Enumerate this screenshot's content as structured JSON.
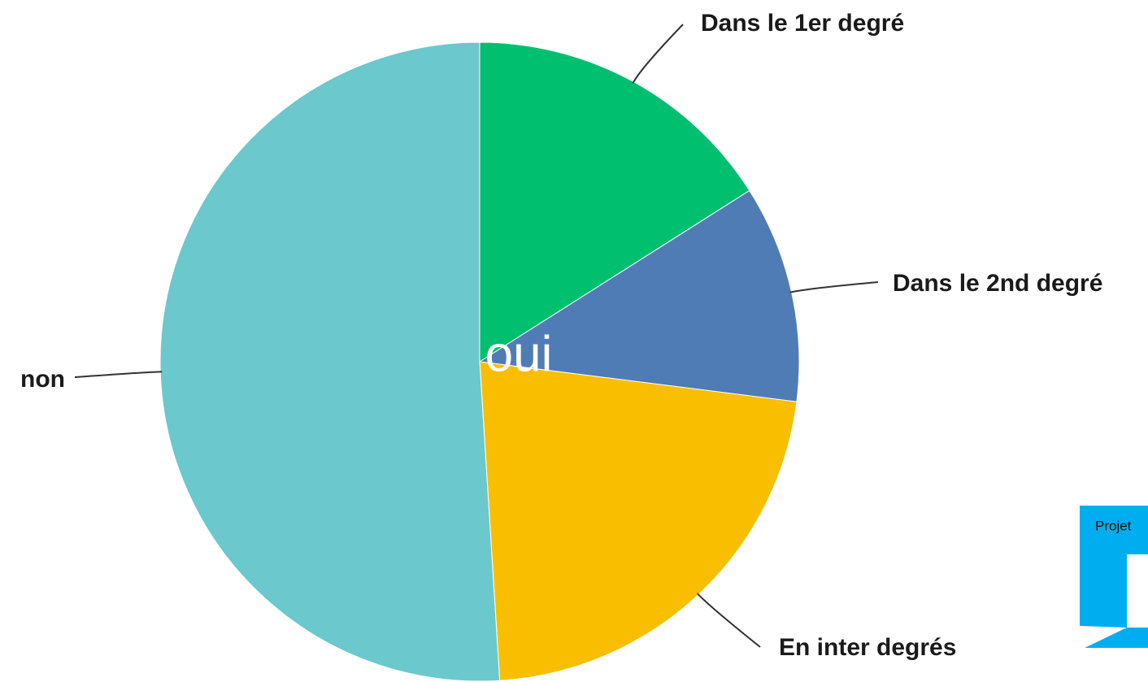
{
  "chart_data": {
    "type": "pie",
    "center_label": "oui",
    "categories": [
      "Dans le 1er degré",
      "Dans le 2nd degré",
      "En inter degrés",
      "non"
    ],
    "values": [
      16,
      11,
      22,
      51
    ],
    "colors": [
      "#00bf6f",
      "#507cb6",
      "#f9be00",
      "#6bc8cd"
    ]
  },
  "logo": {
    "text": "Projet"
  }
}
